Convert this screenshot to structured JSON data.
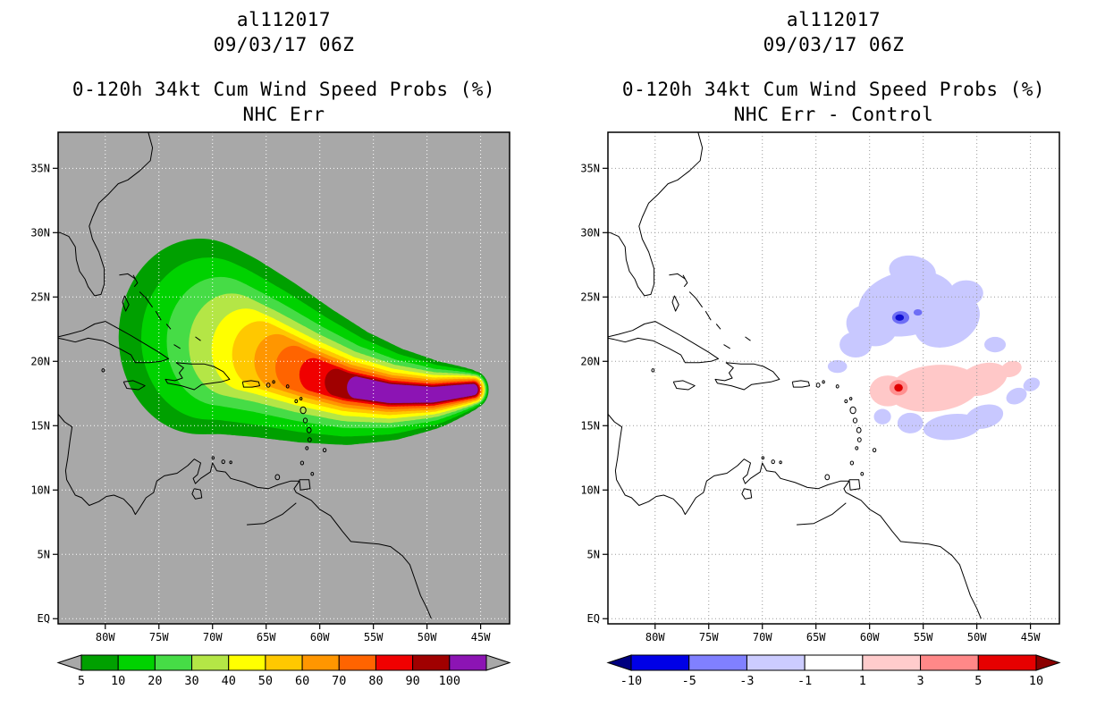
{
  "figure": {
    "background": "#ffffff"
  },
  "panels": [
    {
      "storm_id": "al112017",
      "init_time": "09/03/17 06Z",
      "product_line": "0-120h 34kt Cum Wind Speed Probs (%)",
      "experiment_line": "NHC Err"
    },
    {
      "storm_id": "al112017",
      "init_time": "09/03/17 06Z",
      "product_line": "0-120h 34kt Cum Wind Speed Probs (%)",
      "experiment_line": "NHC Err - Control"
    }
  ],
  "chart_data": [
    {
      "type": "map-filled-contour",
      "title": "al112017 09/03/17 06Z",
      "subtitle": "0-120h 34kt Cum Wind Speed Probs (%) NHC Err",
      "units": "%",
      "background": "#a8a8a8",
      "grid_color": "#ffffff",
      "coast_color": "#000000",
      "lon_range": [
        -84.4,
        -42.3
      ],
      "lat_range": [
        -0.4,
        37.8
      ],
      "lat_ticks": [
        {
          "value": 35,
          "label": "35N"
        },
        {
          "value": 30,
          "label": "30N"
        },
        {
          "value": 25,
          "label": "25N"
        },
        {
          "value": 20,
          "label": "20N"
        },
        {
          "value": 15,
          "label": "15N"
        },
        {
          "value": 10,
          "label": "10N"
        },
        {
          "value": 5,
          "label": "5N"
        },
        {
          "value": 0,
          "label": "EQ"
        }
      ],
      "lon_ticks": [
        {
          "value": -80,
          "label": "80W"
        },
        {
          "value": -75,
          "label": "75W"
        },
        {
          "value": -70,
          "label": "70W"
        },
        {
          "value": -65,
          "label": "65W"
        },
        {
          "value": -60,
          "label": "60W"
        },
        {
          "value": -55,
          "label": "55W"
        },
        {
          "value": -50,
          "label": "50W"
        },
        {
          "value": -45,
          "label": "45W"
        }
      ],
      "levels": [
        5,
        10,
        20,
        30,
        40,
        50,
        60,
        70,
        80,
        90,
        100
      ],
      "swath": {
        "spine": [
          [
            -45.7,
            17.8
          ],
          [
            -49.5,
            17.4
          ],
          [
            -53.5,
            17.5
          ],
          [
            -57.5,
            18.1
          ],
          [
            -61.5,
            19.2
          ],
          [
            -65.5,
            20.5
          ],
          [
            -69.0,
            21.5
          ],
          [
            -72.5,
            22.2
          ]
        ],
        "bands": [
          {
            "level": 5,
            "color": "#00a000",
            "r0": 1.45,
            "r1": 7.6,
            "extent": 0.95
          },
          {
            "level": 10,
            "color": "#00d200",
            "r0": 1.35,
            "r1": 6.3,
            "extent": 0.92
          },
          {
            "level": 20,
            "color": "#46dc46",
            "r0": 1.25,
            "r1": 5.0,
            "extent": 0.88
          },
          {
            "level": 30,
            "color": "#b4e646",
            "r0": 1.15,
            "r1": 4.0,
            "extent": 0.84
          },
          {
            "level": 40,
            "color": "#ffff00",
            "r0": 1.05,
            "r1": 3.2,
            "extent": 0.79
          },
          {
            "level": 50,
            "color": "#ffc800",
            "r0": 0.95,
            "r1": 2.6,
            "extent": 0.74
          },
          {
            "level": 60,
            "color": "#ff9600",
            "r0": 0.85,
            "r1": 2.1,
            "extent": 0.68
          },
          {
            "level": 70,
            "color": "#ff6400",
            "r0": 0.75,
            "r1": 1.7,
            "extent": 0.62
          },
          {
            "level": 80,
            "color": "#f00000",
            "r0": 0.65,
            "r1": 1.3,
            "extent": 0.55
          },
          {
            "level": 90,
            "color": "#a00000",
            "r0": 0.55,
            "r1": 1.05,
            "extent": 0.47
          },
          {
            "level": 100,
            "color": "#8c14b4",
            "r0": 0.45,
            "r1": 0.85,
            "extent": 0.4
          }
        ]
      },
      "colorbar": {
        "labels": [
          "5",
          "10",
          "20",
          "30",
          "40",
          "50",
          "60",
          "70",
          "80",
          "90",
          "100"
        ],
        "colors": [
          "#00a000",
          "#00d200",
          "#46dc46",
          "#b4e646",
          "#ffff00",
          "#ffc800",
          "#ff9600",
          "#ff6400",
          "#f00000",
          "#a00000",
          "#8c14b4"
        ],
        "arrow_left": "#a8a8a8",
        "arrow_right": "#a8a8a8",
        "box_border": "#000000"
      }
    },
    {
      "type": "map-filled-contour-difference",
      "title": "al112017 09/03/17 06Z",
      "subtitle": "0-120h 34kt Cum Wind Speed Probs (%) NHC Err - Control",
      "units": "%",
      "background": "#ffffff",
      "grid_color": "#9a9a9a",
      "coast_color": "#000000",
      "lon_range": [
        -84.4,
        -42.3
      ],
      "lat_range": [
        -0.4,
        37.8
      ],
      "lat_ticks": [
        {
          "value": 35,
          "label": "35N"
        },
        {
          "value": 30,
          "label": "30N"
        },
        {
          "value": 25,
          "label": "25N"
        },
        {
          "value": 20,
          "label": "20N"
        },
        {
          "value": 15,
          "label": "15N"
        },
        {
          "value": 10,
          "label": "10N"
        },
        {
          "value": 5,
          "label": "5N"
        },
        {
          "value": 0,
          "label": "EQ"
        }
      ],
      "lon_ticks": [
        {
          "value": -80,
          "label": "80W"
        },
        {
          "value": -75,
          "label": "75W"
        },
        {
          "value": -70,
          "label": "70W"
        },
        {
          "value": -65,
          "label": "65W"
        },
        {
          "value": -60,
          "label": "60W"
        },
        {
          "value": -55,
          "label": "55W"
        },
        {
          "value": -50,
          "label": "50W"
        },
        {
          "value": -45,
          "label": "45W"
        }
      ],
      "levels": [
        -10,
        -5,
        -3,
        -1,
        1,
        3,
        5,
        10
      ],
      "anomalies": [
        {
          "lon": -56.5,
          "lat": 24.5,
          "rx": 4.6,
          "ry": 2.5,
          "rot": -12,
          "color": "#c8c8ff"
        },
        {
          "lon": -52.8,
          "lat": 23.2,
          "rx": 3.2,
          "ry": 2.0,
          "rot": -25,
          "color": "#c8c8ff"
        },
        {
          "lon": -59.8,
          "lat": 22.8,
          "rx": 2.4,
          "ry": 1.6,
          "rot": 15,
          "color": "#c8c8ff"
        },
        {
          "lon": -56.0,
          "lat": 27.0,
          "rx": 2.2,
          "ry": 1.2,
          "rot": 10,
          "color": "#c8c8ff"
        },
        {
          "lon": -51.0,
          "lat": 25.3,
          "rx": 1.6,
          "ry": 1.0,
          "rot": 0,
          "color": "#c8c8ff"
        },
        {
          "lon": -61.3,
          "lat": 21.3,
          "rx": 1.5,
          "ry": 1.0,
          "rot": 0,
          "color": "#c8c8ff"
        },
        {
          "lon": -48.3,
          "lat": 21.3,
          "rx": 1.0,
          "ry": 0.6,
          "rot": 0,
          "color": "#c8c8ff"
        },
        {
          "lon": -63.0,
          "lat": 19.6,
          "rx": 0.9,
          "ry": 0.5,
          "rot": 0,
          "color": "#c8c8ff"
        },
        {
          "lon": -52.3,
          "lat": 14.9,
          "rx": 2.7,
          "ry": 1.0,
          "rot": -6,
          "color": "#c8c8ff"
        },
        {
          "lon": -49.3,
          "lat": 15.7,
          "rx": 1.8,
          "ry": 0.9,
          "rot": -15,
          "color": "#c8c8ff"
        },
        {
          "lon": -56.2,
          "lat": 15.2,
          "rx": 1.2,
          "ry": 0.8,
          "rot": 0,
          "color": "#c8c8ff"
        },
        {
          "lon": -58.8,
          "lat": 15.7,
          "rx": 0.8,
          "ry": 0.6,
          "rot": 0,
          "color": "#c8c8ff"
        },
        {
          "lon": -46.3,
          "lat": 17.3,
          "rx": 1.0,
          "ry": 0.6,
          "rot": -25,
          "color": "#c8c8ff"
        },
        {
          "lon": -44.9,
          "lat": 18.2,
          "rx": 0.8,
          "ry": 0.5,
          "rot": -25,
          "color": "#c8c8ff"
        },
        {
          "lon": -57.1,
          "lat": 23.4,
          "rx": 0.8,
          "ry": 0.5,
          "rot": 0,
          "color": "#6e6ef5"
        },
        {
          "lon": -55.5,
          "lat": 23.8,
          "rx": 0.4,
          "ry": 0.25,
          "rot": 0,
          "color": "#6e6ef5"
        },
        {
          "lon": -57.2,
          "lat": 23.4,
          "rx": 0.4,
          "ry": 0.25,
          "rot": 0,
          "color": "#0f0fd2"
        },
        {
          "lon": -54.0,
          "lat": 17.9,
          "rx": 4.3,
          "ry": 1.8,
          "rot": -6,
          "color": "#ffc8c8"
        },
        {
          "lon": -49.5,
          "lat": 18.6,
          "rx": 2.4,
          "ry": 1.2,
          "rot": -18,
          "color": "#ffc8c8"
        },
        {
          "lon": -58.3,
          "lat": 17.7,
          "rx": 1.7,
          "ry": 1.2,
          "rot": 0,
          "color": "#ffc8c8"
        },
        {
          "lon": -46.8,
          "lat": 19.4,
          "rx": 1.0,
          "ry": 0.6,
          "rot": -20,
          "color": "#ffc8c8"
        },
        {
          "lon": -57.3,
          "lat": 17.95,
          "rx": 0.85,
          "ry": 0.6,
          "rot": 0,
          "color": "#ff9090"
        },
        {
          "lon": -57.3,
          "lat": 17.95,
          "rx": 0.4,
          "ry": 0.3,
          "rot": 0,
          "color": "#e00000"
        }
      ],
      "colorbar": {
        "labels": [
          "-10",
          "-5",
          "-3",
          "-1",
          "1",
          "3",
          "5",
          "10"
        ],
        "colors": [
          "#0000e6",
          "#8080ff",
          "#ccccff",
          "#ffffff",
          "#ffcccc",
          "#ff8888",
          "#e60000"
        ],
        "arrow_left": "#000080",
        "arrow_right": "#8b0000",
        "box_border": "#000000"
      }
    }
  ]
}
